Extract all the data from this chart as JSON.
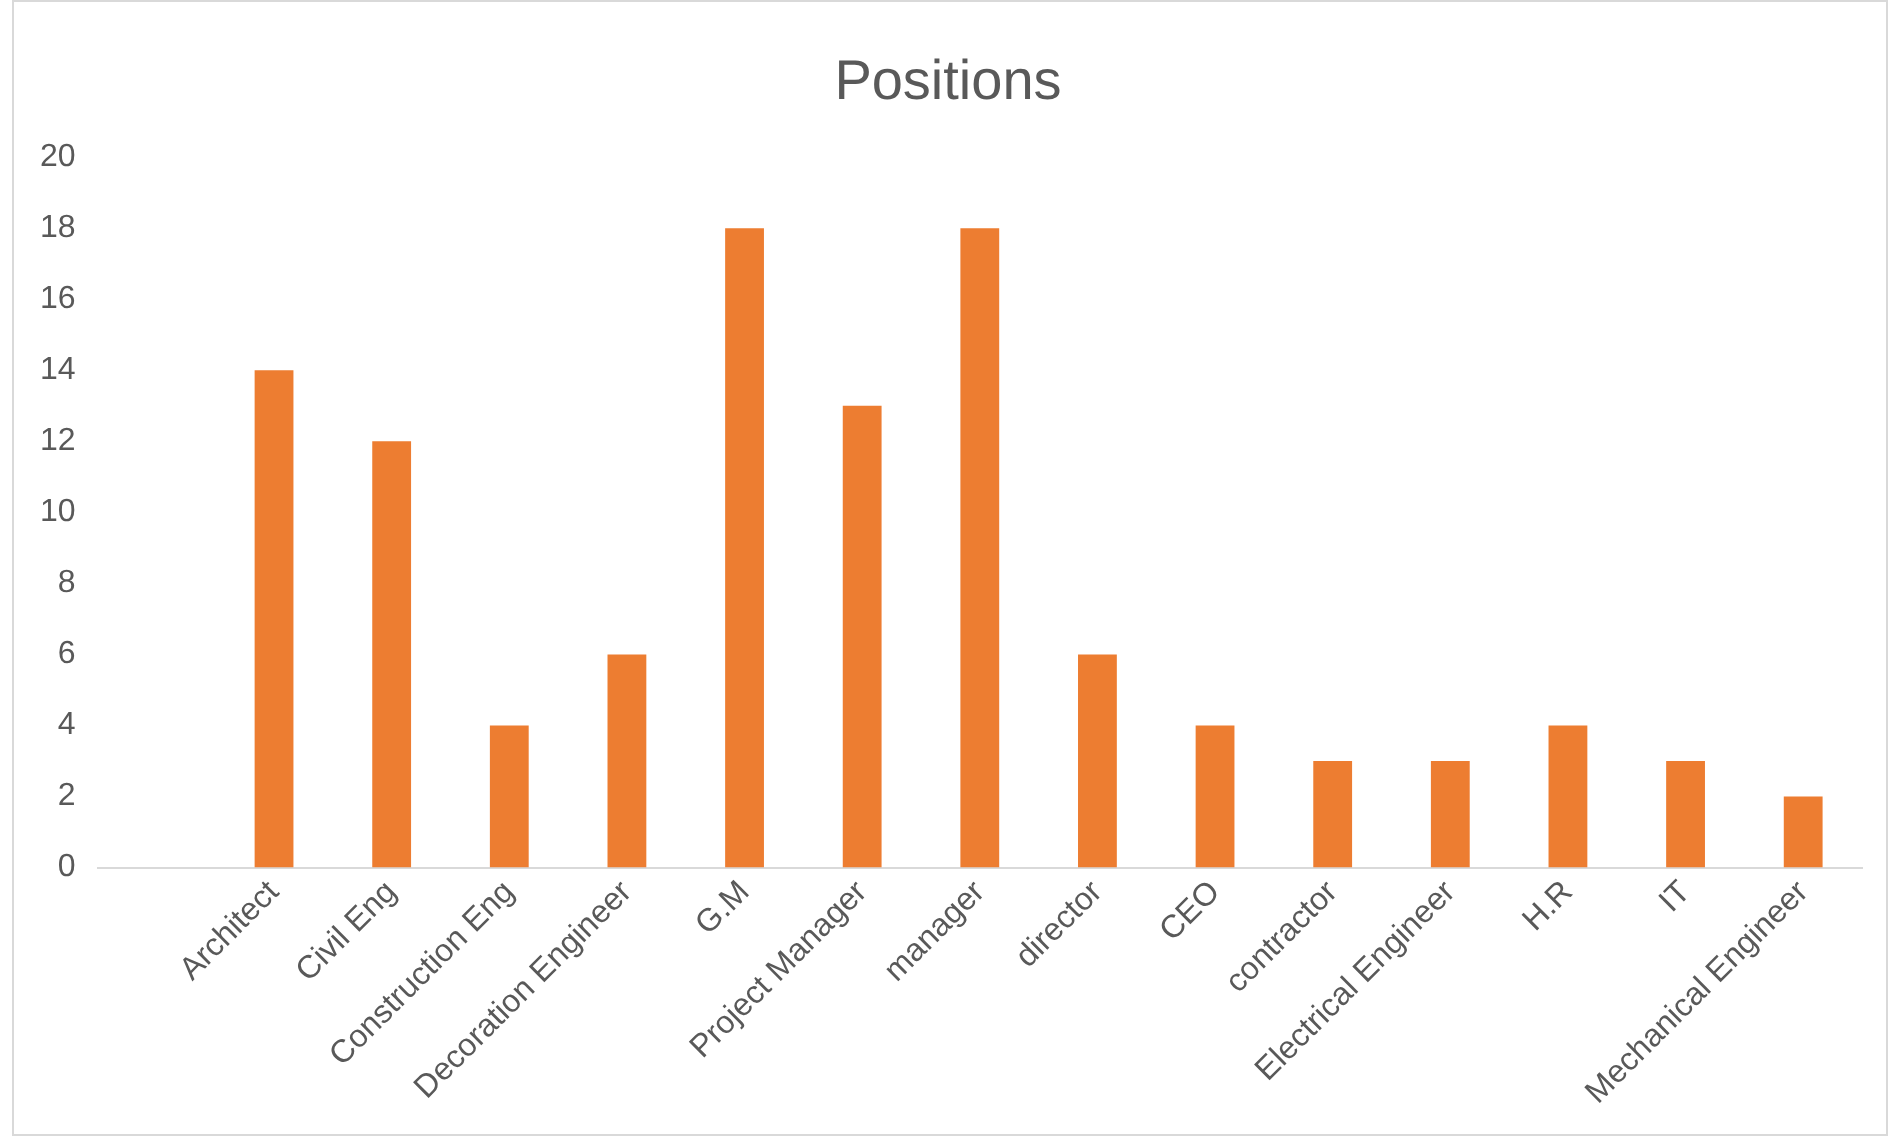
{
  "chart_data": {
    "type": "bar",
    "title": "Positions",
    "categories": [
      null,
      "Architect",
      "Civil Eng",
      "Construction Eng",
      "Decoration Engineer",
      "G.M",
      "Project Manager",
      "manager",
      "director",
      "CEO",
      "contractor",
      "Electrical Engineer",
      "H.R",
      "IT",
      "Mechanical Engineer"
    ],
    "values": [
      null,
      14,
      12,
      4,
      6,
      18,
      13,
      18,
      6,
      4,
      3,
      3,
      4,
      3,
      2
    ],
    "color": "#ed7d31",
    "ylim": [
      0,
      20
    ],
    "yticks": [
      0,
      2,
      4,
      6,
      8,
      10,
      12,
      14,
      16,
      18,
      20
    ],
    "grid": false,
    "legend": false
  }
}
